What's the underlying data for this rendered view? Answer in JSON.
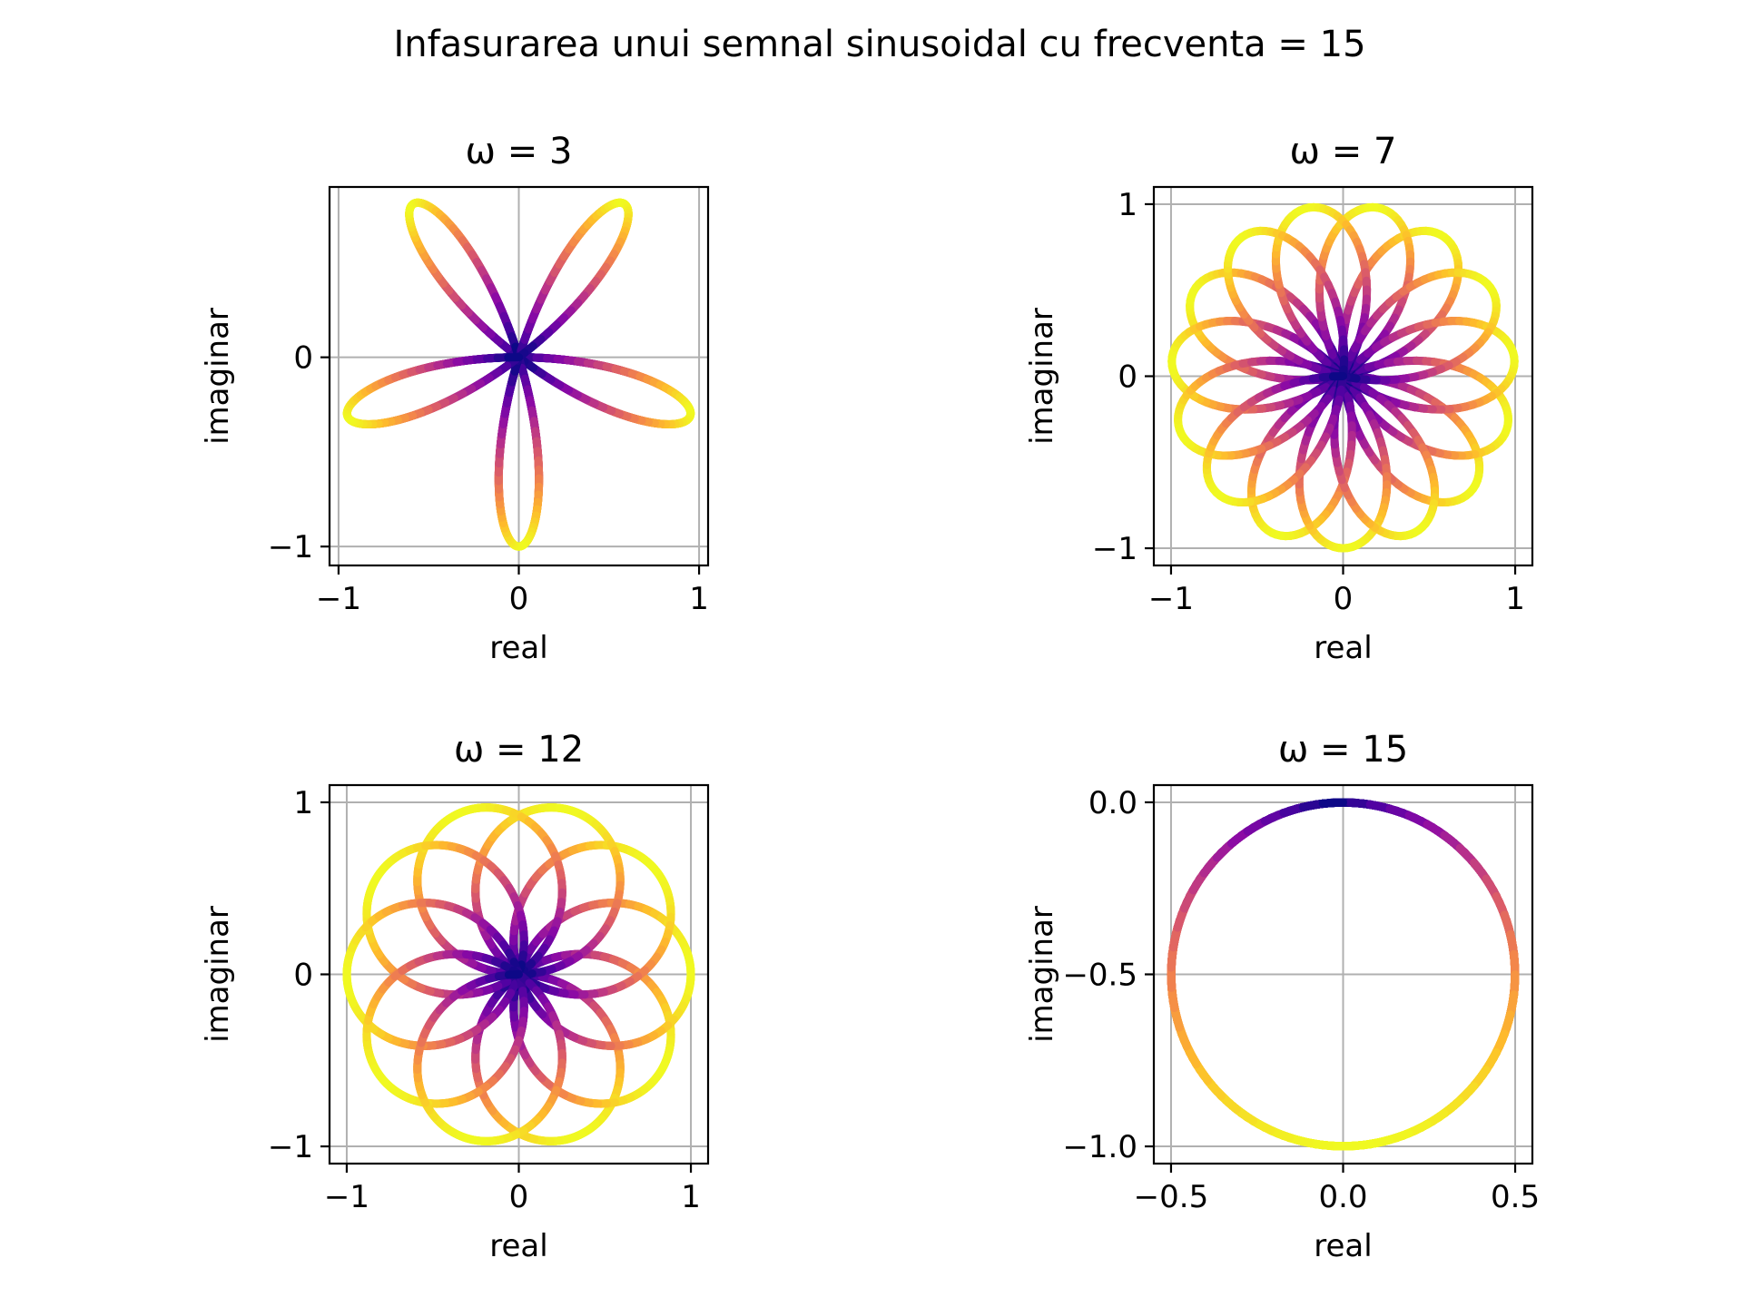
{
  "suptitle": "Infasurarea unui semnal sinusoidal cu frecventa = 15",
  "colors": {
    "colormap": "plasma",
    "grid": "#b0b0b0",
    "axes": "#000000",
    "background": "#ffffff"
  },
  "chart_data": [
    {
      "type": "scatter",
      "title": "ω = 3",
      "xlabel": "real",
      "ylabel": "imaginar",
      "signal_frequency": 15,
      "winding_frequency": 3,
      "xlim": [
        -1.05,
        1.05
      ],
      "ylim": [
        -1.1,
        0.9
      ],
      "xticks": [
        -1,
        0,
        1
      ],
      "xtick_labels": [
        "−1",
        "0",
        "1"
      ],
      "yticks": [
        -1,
        0
      ],
      "ytick_labels": [
        "−1",
        "0"
      ],
      "grid": true,
      "color_encoding": "distance from origin (plasma colormap)"
    },
    {
      "type": "scatter",
      "title": "ω = 7",
      "xlabel": "real",
      "ylabel": "imaginar",
      "signal_frequency": 15,
      "winding_frequency": 7,
      "xlim": [
        -1.1,
        1.1
      ],
      "ylim": [
        -1.1,
        1.1
      ],
      "xticks": [
        -1,
        0,
        1
      ],
      "xtick_labels": [
        "−1",
        "0",
        "1"
      ],
      "yticks": [
        -1,
        0,
        1
      ],
      "ytick_labels": [
        "−1",
        "0",
        "1"
      ],
      "grid": true,
      "color_encoding": "distance from origin (plasma colormap)"
    },
    {
      "type": "scatter",
      "title": "ω = 12",
      "xlabel": "real",
      "ylabel": "imaginar",
      "signal_frequency": 15,
      "winding_frequency": 12,
      "xlim": [
        -1.1,
        1.1
      ],
      "ylim": [
        -1.1,
        1.1
      ],
      "xticks": [
        -1,
        0,
        1
      ],
      "xtick_labels": [
        "−1",
        "0",
        "1"
      ],
      "yticks": [
        -1,
        0,
        1
      ],
      "ytick_labels": [
        "−1",
        "0",
        "1"
      ],
      "grid": true,
      "color_encoding": "distance from origin (plasma colormap)"
    },
    {
      "type": "scatter",
      "title": "ω = 15",
      "xlabel": "real",
      "ylabel": "imaginar",
      "signal_frequency": 15,
      "winding_frequency": 15,
      "xlim": [
        -0.55,
        0.55
      ],
      "ylim": [
        -1.05,
        0.05
      ],
      "xticks": [
        -0.5,
        0,
        0.5
      ],
      "xtick_labels": [
        "−0.5",
        "0.0",
        "0.5"
      ],
      "yticks": [
        -1,
        -0.5,
        0
      ],
      "ytick_labels": [
        "−1.0",
        "−0.5",
        "0.0"
      ],
      "grid": true,
      "color_encoding": "distance from origin (plasma colormap)"
    }
  ]
}
